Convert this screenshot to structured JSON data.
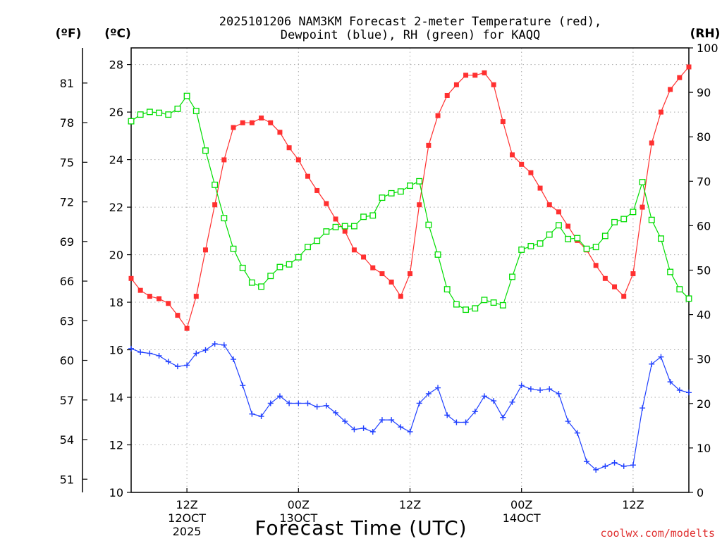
{
  "chart_data": {
    "type": "line",
    "title_line1": "2025101206 NAM3KM Forecast 2-meter Temperature (red),",
    "title_line2": "Dewpoint (blue), RH (green) for KAQQ",
    "xlabel": "Forecast Time (UTC)",
    "credit": "coolwx.com/modelts",
    "units": {
      "fahrenheit": "(ºF)",
      "celsius": "(ºC)",
      "rh": "(RH)"
    },
    "y_celsius": {
      "min": 10,
      "max": 28.7,
      "ticks": [
        "10",
        "12",
        "14",
        "16",
        "18",
        "20",
        "22",
        "24",
        "26",
        "28"
      ]
    },
    "y_fahrenheit": {
      "ticks": [
        "51",
        "54",
        "57",
        "60",
        "63",
        "66",
        "69",
        "72",
        "75",
        "78",
        "81"
      ]
    },
    "y_rh": {
      "min": 0,
      "max": 100,
      "ticks": [
        "0",
        "10",
        "20",
        "30",
        "40",
        "50",
        "60",
        "70",
        "80",
        "90",
        "100"
      ]
    },
    "x_range_hours": [
      0,
      60
    ],
    "x_ticks": [
      {
        "hour": 6,
        "line1": "12Z",
        "line2": "12OCT",
        "line3": "2025"
      },
      {
        "hour": 18,
        "line1": "00Z",
        "line2": "13OCT",
        "line3": ""
      },
      {
        "hour": 30,
        "line1": "12Z",
        "line2": "",
        "line3": ""
      },
      {
        "hour": 42,
        "line1": "00Z",
        "line2": "14OCT",
        "line3": ""
      },
      {
        "hour": 54,
        "line1": "12Z",
        "line2": "",
        "line3": ""
      }
    ],
    "colors": {
      "temperature": "#ff3030",
      "dewpoint": "#2040ff",
      "rh": "#00dd00",
      "grid": "#a8a8a8"
    },
    "series": [
      {
        "name": "Temperature (°C)",
        "axis": "celsius",
        "marker": "filled-square",
        "color": "#ff3030",
        "x": [
          0,
          1,
          2,
          3,
          4,
          5,
          6,
          7,
          8,
          9,
          10,
          11,
          12,
          13,
          14,
          15,
          16,
          17,
          18,
          19,
          20,
          21,
          22,
          23,
          24,
          25,
          26,
          27,
          28,
          29,
          30,
          31,
          32,
          33,
          34,
          35,
          36,
          37,
          38,
          39,
          40,
          41,
          42,
          43,
          44,
          45,
          46,
          47,
          48,
          49,
          50,
          51,
          52,
          53,
          54,
          55,
          56,
          57,
          58,
          59,
          60
        ],
        "values": [
          19.0,
          18.5,
          18.25,
          18.15,
          17.95,
          17.45,
          16.9,
          18.25,
          20.2,
          22.1,
          23.99,
          25.35,
          25.55,
          25.55,
          25.75,
          25.55,
          25.15,
          24.5,
          23.99,
          23.3,
          22.7,
          22.15,
          21.5,
          20.99,
          20.2,
          19.9,
          19.45,
          19.2,
          18.85,
          18.25,
          19.2,
          22.1,
          24.6,
          25.85,
          26.7,
          27.15,
          27.55,
          27.55,
          27.65,
          27.15,
          25.6,
          24.2,
          23.8,
          23.45,
          22.8,
          22.1,
          21.8,
          21.2,
          20.6,
          20.2,
          19.55,
          19.0,
          18.65,
          18.25,
          19.2,
          22.0,
          24.7,
          26.0,
          26.95,
          27.45,
          27.9
        ]
      },
      {
        "name": "Dewpoint (°C)",
        "axis": "celsius",
        "marker": "plus",
        "color": "#2040ff",
        "x": [
          0,
          1,
          2,
          3,
          4,
          5,
          6,
          7,
          8,
          9,
          10,
          11,
          12,
          13,
          14,
          15,
          16,
          17,
          18,
          19,
          20,
          21,
          22,
          23,
          24,
          25,
          26,
          27,
          28,
          29,
          30,
          31,
          32,
          33,
          34,
          35,
          36,
          37,
          38,
          39,
          40,
          41,
          42,
          43,
          44,
          45,
          46,
          47,
          48,
          49,
          50,
          51,
          52,
          53,
          54,
          55,
          56,
          57,
          58,
          59,
          60
        ],
        "values": [
          16.05,
          15.9,
          15.85,
          15.75,
          15.5,
          15.3,
          15.35,
          15.85,
          15.99,
          16.25,
          16.2,
          15.6,
          14.5,
          13.3,
          13.2,
          13.75,
          14.05,
          13.75,
          13.75,
          13.75,
          13.6,
          13.65,
          13.35,
          12.99,
          12.65,
          12.7,
          12.55,
          13.05,
          13.05,
          12.75,
          12.55,
          13.75,
          14.15,
          14.4,
          13.25,
          12.95,
          12.95,
          13.4,
          14.05,
          13.85,
          13.15,
          13.8,
          14.5,
          14.35,
          14.3,
          14.35,
          14.15,
          12.99,
          12.5,
          11.3,
          10.95,
          11.1,
          11.25,
          11.1,
          11.15,
          13.55,
          15.4,
          15.7,
          14.65,
          14.3,
          14.2
        ]
      },
      {
        "name": "RH (%)",
        "axis": "rh",
        "marker": "open-square",
        "color": "#00dd00",
        "x": [
          0,
          1,
          2,
          3,
          4,
          5,
          6,
          7,
          8,
          9,
          10,
          11,
          12,
          13,
          14,
          15,
          16,
          17,
          18,
          19,
          20,
          21,
          22,
          23,
          24,
          25,
          26,
          27,
          28,
          29,
          30,
          31,
          32,
          33,
          34,
          35,
          36,
          37,
          38,
          39,
          40,
          41,
          42,
          43,
          44,
          45,
          46,
          47,
          48,
          49,
          50,
          51,
          52,
          53,
          54,
          55,
          56,
          57,
          58,
          59,
          60
        ],
        "values": [
          83.5,
          85.0,
          85.6,
          85.4,
          85.0,
          86.3,
          89.2,
          85.8,
          76.9,
          69.2,
          61.7,
          54.8,
          50.5,
          47.2,
          46.3,
          48.7,
          50.7,
          51.3,
          52.9,
          55.2,
          56.6,
          58.7,
          59.7,
          59.9,
          59.9,
          62.0,
          62.3,
          66.3,
          67.3,
          67.7,
          69.0,
          70.0,
          60.2,
          53.5,
          45.7,
          42.3,
          41.1,
          41.4,
          43.3,
          42.7,
          42.1,
          48.5,
          54.6,
          55.4,
          56.0,
          58.0,
          60.1,
          57.0,
          57.2,
          54.8,
          55.2,
          57.7,
          60.8,
          61.5,
          63.1,
          69.8,
          61.3,
          57.1,
          49.6,
          45.7,
          43.6
        ]
      }
    ]
  }
}
